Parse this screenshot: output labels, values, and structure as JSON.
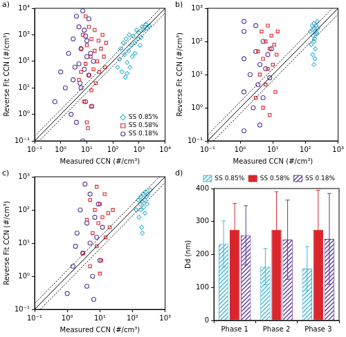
{
  "chart_data": [
    {
      "type": "scatter",
      "annotations": [
        "a)"
      ],
      "x_label": "Measured CCN (#/cm³)",
      "y_label": "Reverse Fit CCN (#/cm³)",
      "log": true,
      "grid": false,
      "legend": "lower right",
      "xlim": [
        0.1,
        10000
      ],
      "ylim": [
        0.1,
        10000
      ],
      "xticks": [
        {
          "value": 0.1,
          "label": "10⁻¹"
        },
        {
          "value": 1,
          "label": "10⁰"
        },
        {
          "value": 10,
          "label": "10¹"
        },
        {
          "value": 100,
          "label": "10²"
        },
        {
          "value": 1000,
          "label": "10³"
        },
        {
          "value": 10000,
          "label": "10⁴"
        }
      ],
      "yticks": [
        {
          "value": 0.1,
          "label": "10⁻¹"
        },
        {
          "value": 1,
          "label": "10⁰"
        },
        {
          "value": 10,
          "label": "10¹"
        },
        {
          "value": 100,
          "label": "10²"
        },
        {
          "value": 1000,
          "label": "10³"
        },
        {
          "value": 10000,
          "label": "10⁴"
        }
      ],
      "reference_lines": [
        {
          "x": [
            0.1,
            10000
          ],
          "y": [
            0.1,
            10000
          ],
          "line_style": "solid"
        },
        {
          "x": [
            0.1,
            10000
          ],
          "y": [
            0.15,
            15000
          ],
          "line_style": "dotted"
        },
        {
          "x": [
            0.1,
            10000
          ],
          "y": [
            0.0667,
            6667
          ],
          "line_style": "dotted"
        }
      ],
      "series": [
        {
          "name": "SS 0.85%",
          "color": "#3fb6d9",
          "marker": "diamond",
          "values": [
            [
              150,
              60
            ],
            [
              180,
              120
            ],
            [
              200,
              300
            ],
            [
              220,
              40
            ],
            [
              250,
              500
            ],
            [
              280,
              180
            ],
            [
              300,
              25
            ],
            [
              320,
              700
            ],
            [
              350,
              90
            ],
            [
              400,
              250
            ],
            [
              420,
              1000
            ],
            [
              450,
              60
            ],
            [
              500,
              400
            ],
            [
              550,
              150
            ],
            [
              600,
              900
            ],
            [
              700,
              500
            ],
            [
              800,
              1500
            ],
            [
              900,
              700
            ],
            [
              1000,
              1200
            ],
            [
              1200,
              800
            ],
            [
              1300,
              2000
            ],
            [
              1500,
              1500
            ],
            [
              1800,
              2500
            ],
            [
              2000,
              1800
            ],
            [
              2500,
              2200
            ],
            [
              1100,
              400
            ],
            [
              700,
              200
            ],
            [
              350,
              35
            ]
          ]
        },
        {
          "name": "SS 0.58%",
          "color": "#d9262c",
          "marker": "square",
          "values": [
            [
              5,
              20
            ],
            [
              6,
              300
            ],
            [
              7,
              1000
            ],
            [
              8,
              3
            ],
            [
              9,
              80
            ],
            [
              10,
              400
            ],
            [
              10,
              0.5
            ],
            [
              12,
              30
            ],
            [
              12,
              2000
            ],
            [
              14,
              150
            ],
            [
              15,
              8
            ],
            [
              15,
              700
            ],
            [
              18,
              50
            ],
            [
              20,
              250
            ],
            [
              20,
              1500
            ],
            [
              22,
              15
            ],
            [
              25,
              100
            ],
            [
              28,
              600
            ],
            [
              30,
              40
            ],
            [
              35,
              300
            ],
            [
              40,
              1000
            ],
            [
              45,
              150
            ],
            [
              50,
              60
            ],
            [
              55,
              500
            ],
            [
              9,
              5000
            ],
            [
              11,
              0.3
            ],
            [
              16,
              2
            ],
            [
              6,
              40
            ]
          ]
        },
        {
          "name": "SS 0.18%",
          "color": "#5b3a9b",
          "marker": "circle",
          "values": [
            [
              0.6,
              3
            ],
            [
              1,
              40
            ],
            [
              1.5,
              10
            ],
            [
              2,
              200
            ],
            [
              2.5,
              1
            ],
            [
              3,
              700
            ],
            [
              3,
              20
            ],
            [
              4,
              5000
            ],
            [
              4,
              0.5
            ],
            [
              5,
              80
            ],
            [
              5,
              2000
            ],
            [
              6,
              10
            ],
            [
              6,
              300
            ],
            [
              7,
              8000
            ],
            [
              7,
              0.1
            ],
            [
              8,
              50
            ],
            [
              8,
              1500
            ],
            [
              9,
              3
            ],
            [
              10,
              150
            ],
            [
              10,
              600
            ],
            [
              12,
              30
            ],
            [
              12,
              4000
            ],
            [
              14,
              200
            ],
            [
              15,
              2
            ],
            [
              18,
              100
            ],
            [
              3.5,
              60
            ],
            [
              5.5,
              15
            ],
            [
              9,
              900
            ]
          ]
        }
      ]
    },
    {
      "type": "scatter",
      "annotations": [
        "b)"
      ],
      "x_label": "Measured CCN (#/cm³)",
      "y_label": "Reverse Fit CCN (#/cm³)",
      "log": true,
      "grid": false,
      "xlim": [
        0.1,
        1000
      ],
      "ylim": [
        0.1,
        1000
      ],
      "xticks": [
        {
          "value": 0.1,
          "label": "10⁻¹"
        },
        {
          "value": 1,
          "label": "10⁰"
        },
        {
          "value": 10,
          "label": "10¹"
        },
        {
          "value": 100,
          "label": "10²"
        },
        {
          "value": 1000,
          "label": "10³"
        }
      ],
      "yticks": [
        {
          "value": 0.1,
          "label": "10⁻¹"
        },
        {
          "value": 1,
          "label": "10⁰"
        },
        {
          "value": 10,
          "label": "10¹"
        },
        {
          "value": 100,
          "label": "10²"
        },
        {
          "value": 1000,
          "label": "10³"
        }
      ],
      "reference_lines": [
        {
          "x": [
            0.1,
            1000
          ],
          "y": [
            0.1,
            1000
          ],
          "line_style": "solid"
        },
        {
          "x": [
            0.1,
            1000
          ],
          "y": [
            0.15,
            1500
          ],
          "line_style": "dotted"
        },
        {
          "x": [
            0.1,
            1000
          ],
          "y": [
            0.0667,
            667
          ],
          "line_style": "dotted"
        }
      ],
      "series": [
        {
          "color": "#3fb6d9",
          "marker": "diamond",
          "values": [
            [
              140,
              200
            ],
            [
              150,
              80
            ],
            [
              160,
              300
            ],
            [
              165,
              40
            ],
            [
              170,
              150
            ],
            [
              175,
              250
            ],
            [
              180,
              20
            ],
            [
              180,
              350
            ],
            [
              190,
              120
            ],
            [
              200,
              200
            ],
            [
              200,
              60
            ],
            [
              210,
              300
            ],
            [
              220,
              180
            ],
            [
              230,
              400
            ],
            [
              240,
              250
            ],
            [
              185,
              100
            ],
            [
              195,
              30
            ],
            [
              205,
              170
            ]
          ]
        },
        {
          "color": "#d9262c",
          "marker": "square",
          "values": [
            [
              3,
              2
            ],
            [
              3.5,
              50
            ],
            [
              4,
              10
            ],
            [
              4.5,
              200
            ],
            [
              5,
              1
            ],
            [
              5,
              30
            ],
            [
              6,
              100
            ],
            [
              6,
              5
            ],
            [
              7,
              300
            ],
            [
              7,
              15
            ],
            [
              8,
              60
            ],
            [
              8,
              0.6
            ],
            [
              9,
              150
            ],
            [
              10,
              20
            ],
            [
              11,
              80
            ],
            [
              12,
              3
            ],
            [
              13,
              40
            ],
            [
              14,
              200
            ]
          ]
        },
        {
          "color": "#5b3a9b",
          "marker": "circle",
          "values": [
            [
              1.3,
              0.2
            ],
            [
              1.3,
              3
            ],
            [
              1.3,
              30
            ],
            [
              1.3,
              200
            ],
            [
              1.3,
              400
            ],
            [
              2,
              10
            ],
            [
              2.5,
              1
            ],
            [
              3,
              50
            ],
            [
              3,
              300
            ],
            [
              3.5,
              5
            ],
            [
              4,
              20
            ],
            [
              4,
              0.3
            ],
            [
              5,
              100
            ],
            [
              5,
              2
            ],
            [
              6,
              15
            ],
            [
              7,
              40
            ],
            [
              8,
              8
            ],
            [
              9,
              60
            ]
          ]
        }
      ]
    },
    {
      "type": "scatter",
      "annotations": [
        "c)"
      ],
      "x_label": "Measured CCN (#/cm³)",
      "y_label": "Reverse Fit CCN (#/cm³)",
      "log": true,
      "grid": false,
      "xlim": [
        0.1,
        1000
      ],
      "ylim": [
        0.1,
        1000
      ],
      "xticks": [
        {
          "value": 0.1,
          "label": "10⁻¹"
        },
        {
          "value": 1,
          "label": "10⁰"
        },
        {
          "value": 10,
          "label": "10¹"
        },
        {
          "value": 100,
          "label": "10²"
        },
        {
          "value": 1000,
          "label": "10³"
        }
      ],
      "yticks": [
        {
          "value": 0.1,
          "label": "10⁻¹"
        },
        {
          "value": 1,
          "label": "10⁰"
        },
        {
          "value": 10,
          "label": "10¹"
        },
        {
          "value": 100,
          "label": "10²"
        },
        {
          "value": 1000,
          "label": "10³"
        }
      ],
      "reference_lines": [
        {
          "x": [
            0.1,
            1000
          ],
          "y": [
            0.1,
            1000
          ],
          "line_style": "solid"
        },
        {
          "x": [
            0.1,
            1000
          ],
          "y": [
            0.15,
            1500
          ],
          "line_style": "dotted"
        },
        {
          "x": [
            0.1,
            1000
          ],
          "y": [
            0.0667,
            667
          ],
          "line_style": "dotted"
        }
      ],
      "series": [
        {
          "color": "#3fb6d9",
          "marker": "diamond",
          "values": [
            [
              130,
              100
            ],
            [
              150,
              200
            ],
            [
              160,
              60
            ],
            [
              170,
              150
            ],
            [
              180,
              250
            ],
            [
              190,
              30
            ],
            [
              200,
              180
            ],
            [
              210,
              300
            ],
            [
              220,
              120
            ],
            [
              230,
              200
            ],
            [
              250,
              350
            ],
            [
              270,
              250
            ],
            [
              300,
              300
            ],
            [
              350,
              400
            ],
            [
              200,
              20
            ],
            [
              240,
              80
            ],
            [
              180,
              100
            ],
            [
              280,
              150
            ]
          ]
        },
        {
          "color": "#d9262c",
          "marker": "square",
          "values": [
            [
              3,
              5
            ],
            [
              4,
              50
            ],
            [
              5,
              200
            ],
            [
              5,
              2
            ],
            [
              6,
              20
            ],
            [
              7,
              100
            ],
            [
              8,
              500
            ],
            [
              8,
              8
            ],
            [
              9,
              40
            ],
            [
              10,
              150
            ],
            [
              11,
              3
            ],
            [
              12,
              60
            ],
            [
              14,
              300
            ],
            [
              15,
              15
            ],
            [
              18,
              80
            ],
            [
              20,
              30
            ],
            [
              25,
              100
            ],
            [
              10,
              1.2
            ]
          ]
        },
        {
          "color": "#5b3a9b",
          "marker": "circle",
          "values": [
            [
              1,
              0.3
            ],
            [
              1.5,
              2
            ],
            [
              2,
              20
            ],
            [
              2.5,
              100
            ],
            [
              3,
              5
            ],
            [
              3.5,
              600
            ],
            [
              4,
              0.5
            ],
            [
              4,
              40
            ],
            [
              5,
              10
            ],
            [
              5,
              300
            ],
            [
              6,
              1
            ],
            [
              7,
              60
            ],
            [
              8,
              15
            ],
            [
              9,
              150
            ],
            [
              10,
              3
            ],
            [
              12,
              30
            ],
            [
              1.8,
              8
            ],
            [
              6.5,
              0.2
            ]
          ]
        }
      ]
    },
    {
      "type": "bar",
      "annotations": [
        "d)"
      ],
      "y_label": "Dd (nm)",
      "grid": false,
      "legend": "top",
      "categories": [
        "Phase 1",
        "Phase 2",
        "Phase 3"
      ],
      "ylim": [
        0,
        400
      ],
      "yticks": [
        0,
        100,
        200,
        300,
        400
      ],
      "series": [
        {
          "name": "SS 0.85%",
          "color": "#3fb6d9",
          "values": [
            232,
            163,
            157
          ],
          "errors": [
            70,
            55,
            67
          ]
        },
        {
          "name": "SS 0.58%",
          "color": "#d9262c",
          "values": [
            275,
            275,
            275
          ],
          "errors": [
            80,
            115,
            120
          ]
        },
        {
          "name": "SS 0.18%",
          "color": "#5b3a9b",
          "values": [
            258,
            245,
            247
          ],
          "errors": [
            90,
            120,
            138
          ]
        }
      ]
    }
  ]
}
